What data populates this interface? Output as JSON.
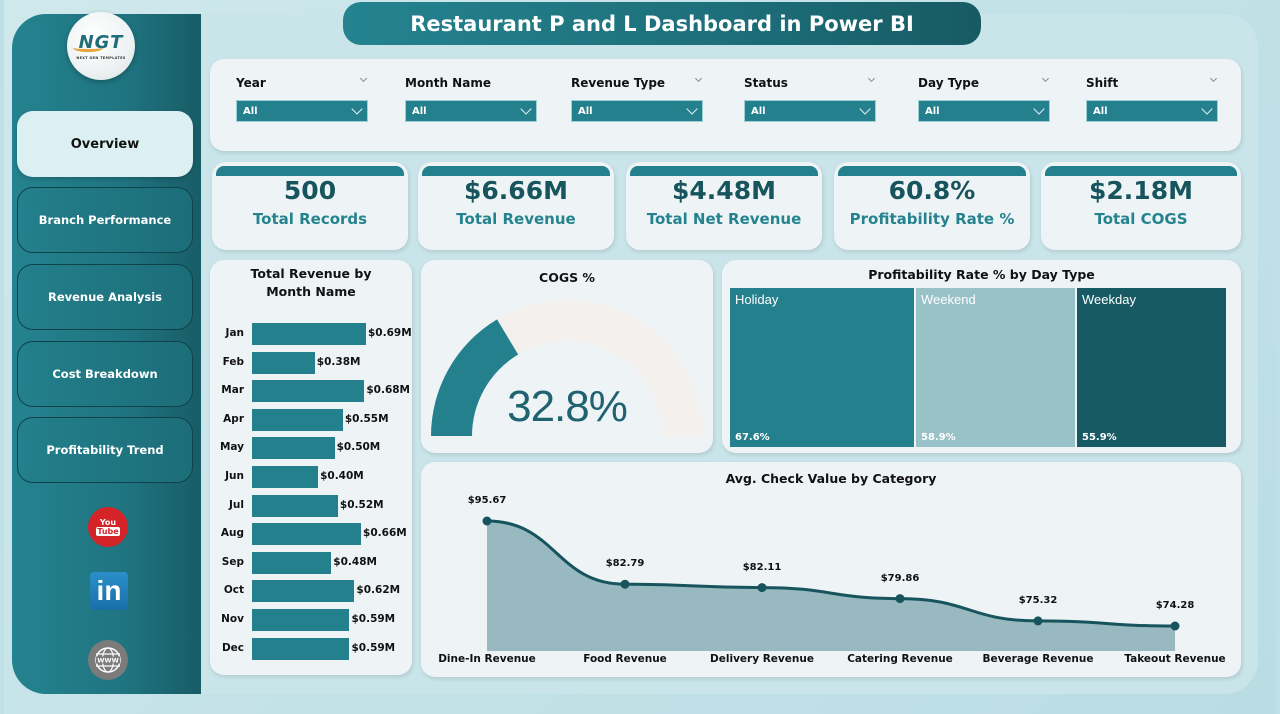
{
  "header": {
    "title": "Restaurant P and L Dashboard in Power BI"
  },
  "logo": {
    "mark": "NGT",
    "subtitle": "NEXT GEN TEMPLATES"
  },
  "sidebar": {
    "items": [
      {
        "label": "Overview",
        "active": true
      },
      {
        "label": "Branch Performance",
        "active": false
      },
      {
        "label": "Revenue Analysis",
        "active": false
      },
      {
        "label": "Cost Breakdown",
        "active": false
      },
      {
        "label": "Profitability Trend",
        "active": false
      }
    ],
    "social": [
      {
        "icon": "youtube-icon",
        "text_top": "You",
        "text_bottom": "Tube"
      },
      {
        "icon": "linkedin-icon",
        "text": "in"
      },
      {
        "icon": "globe-www-icon",
        "text": "WWW"
      }
    ]
  },
  "filters": [
    {
      "label": "Year",
      "value": "All"
    },
    {
      "label": "Month Name",
      "value": "All"
    },
    {
      "label": "Revenue Type",
      "value": "All"
    },
    {
      "label": "Status",
      "value": "All"
    },
    {
      "label": "Day Type",
      "value": "All"
    },
    {
      "label": "Shift",
      "value": "All"
    }
  ],
  "kpis": [
    {
      "value": "500",
      "label": "Total Records"
    },
    {
      "value": "$6.66M",
      "label": "Total Revenue"
    },
    {
      "value": "$4.48M",
      "label": "Total Net Revenue"
    },
    {
      "value": "60.8%",
      "label": "Profitability Rate %"
    },
    {
      "value": "$2.18M",
      "label": "Total COGS"
    }
  ],
  "colors": {
    "primary": "#23808c",
    "dark": "#175a64",
    "light": "#98c1c8",
    "panel": "#eef4f6",
    "background": "#c9e5ea"
  },
  "chart_data": [
    {
      "type": "bar",
      "title": "Total Revenue by Month Name",
      "orientation": "horizontal",
      "categories": [
        "Jan",
        "Feb",
        "Mar",
        "Apr",
        "May",
        "Jun",
        "Jul",
        "Aug",
        "Sep",
        "Oct",
        "Nov",
        "Dec"
      ],
      "values": [
        0.69,
        0.38,
        0.68,
        0.55,
        0.5,
        0.4,
        0.52,
        0.66,
        0.48,
        0.62,
        0.59,
        0.59
      ],
      "labels": [
        "$0.69M",
        "$0.38M",
        "$0.68M",
        "$0.55M",
        "$0.50M",
        "$0.40M",
        "$0.52M",
        "$0.66M",
        "$0.48M",
        "$0.62M",
        "$0.59M",
        "$0.59M"
      ],
      "xlabel": "",
      "ylabel": "",
      "unit": "$M"
    },
    {
      "type": "gauge",
      "title": "COGS %",
      "value": 32.8,
      "label": "32.8%",
      "range": [
        0,
        100
      ]
    },
    {
      "type": "treemap",
      "title": "Profitability Rate % by Day Type",
      "categories": [
        "Holiday",
        "Weekend",
        "Weekday"
      ],
      "values": [
        67.6,
        58.9,
        55.9
      ],
      "labels": [
        "67.6%",
        "58.9%",
        "55.9%"
      ],
      "colors": [
        "#23808c",
        "#98c1c8",
        "#175a64"
      ]
    },
    {
      "type": "area",
      "title": "Avg. Check Value by Category",
      "categories": [
        "Dine-In Revenue",
        "Food Revenue",
        "Delivery Revenue",
        "Catering Revenue",
        "Beverage Revenue",
        "Takeout Revenue"
      ],
      "values": [
        95.67,
        82.79,
        82.11,
        79.86,
        75.32,
        74.28
      ],
      "labels": [
        "$95.67",
        "$82.79",
        "$82.11",
        "$79.86",
        "$75.32",
        "$74.28"
      ],
      "xlabel": "",
      "ylabel": ""
    }
  ]
}
